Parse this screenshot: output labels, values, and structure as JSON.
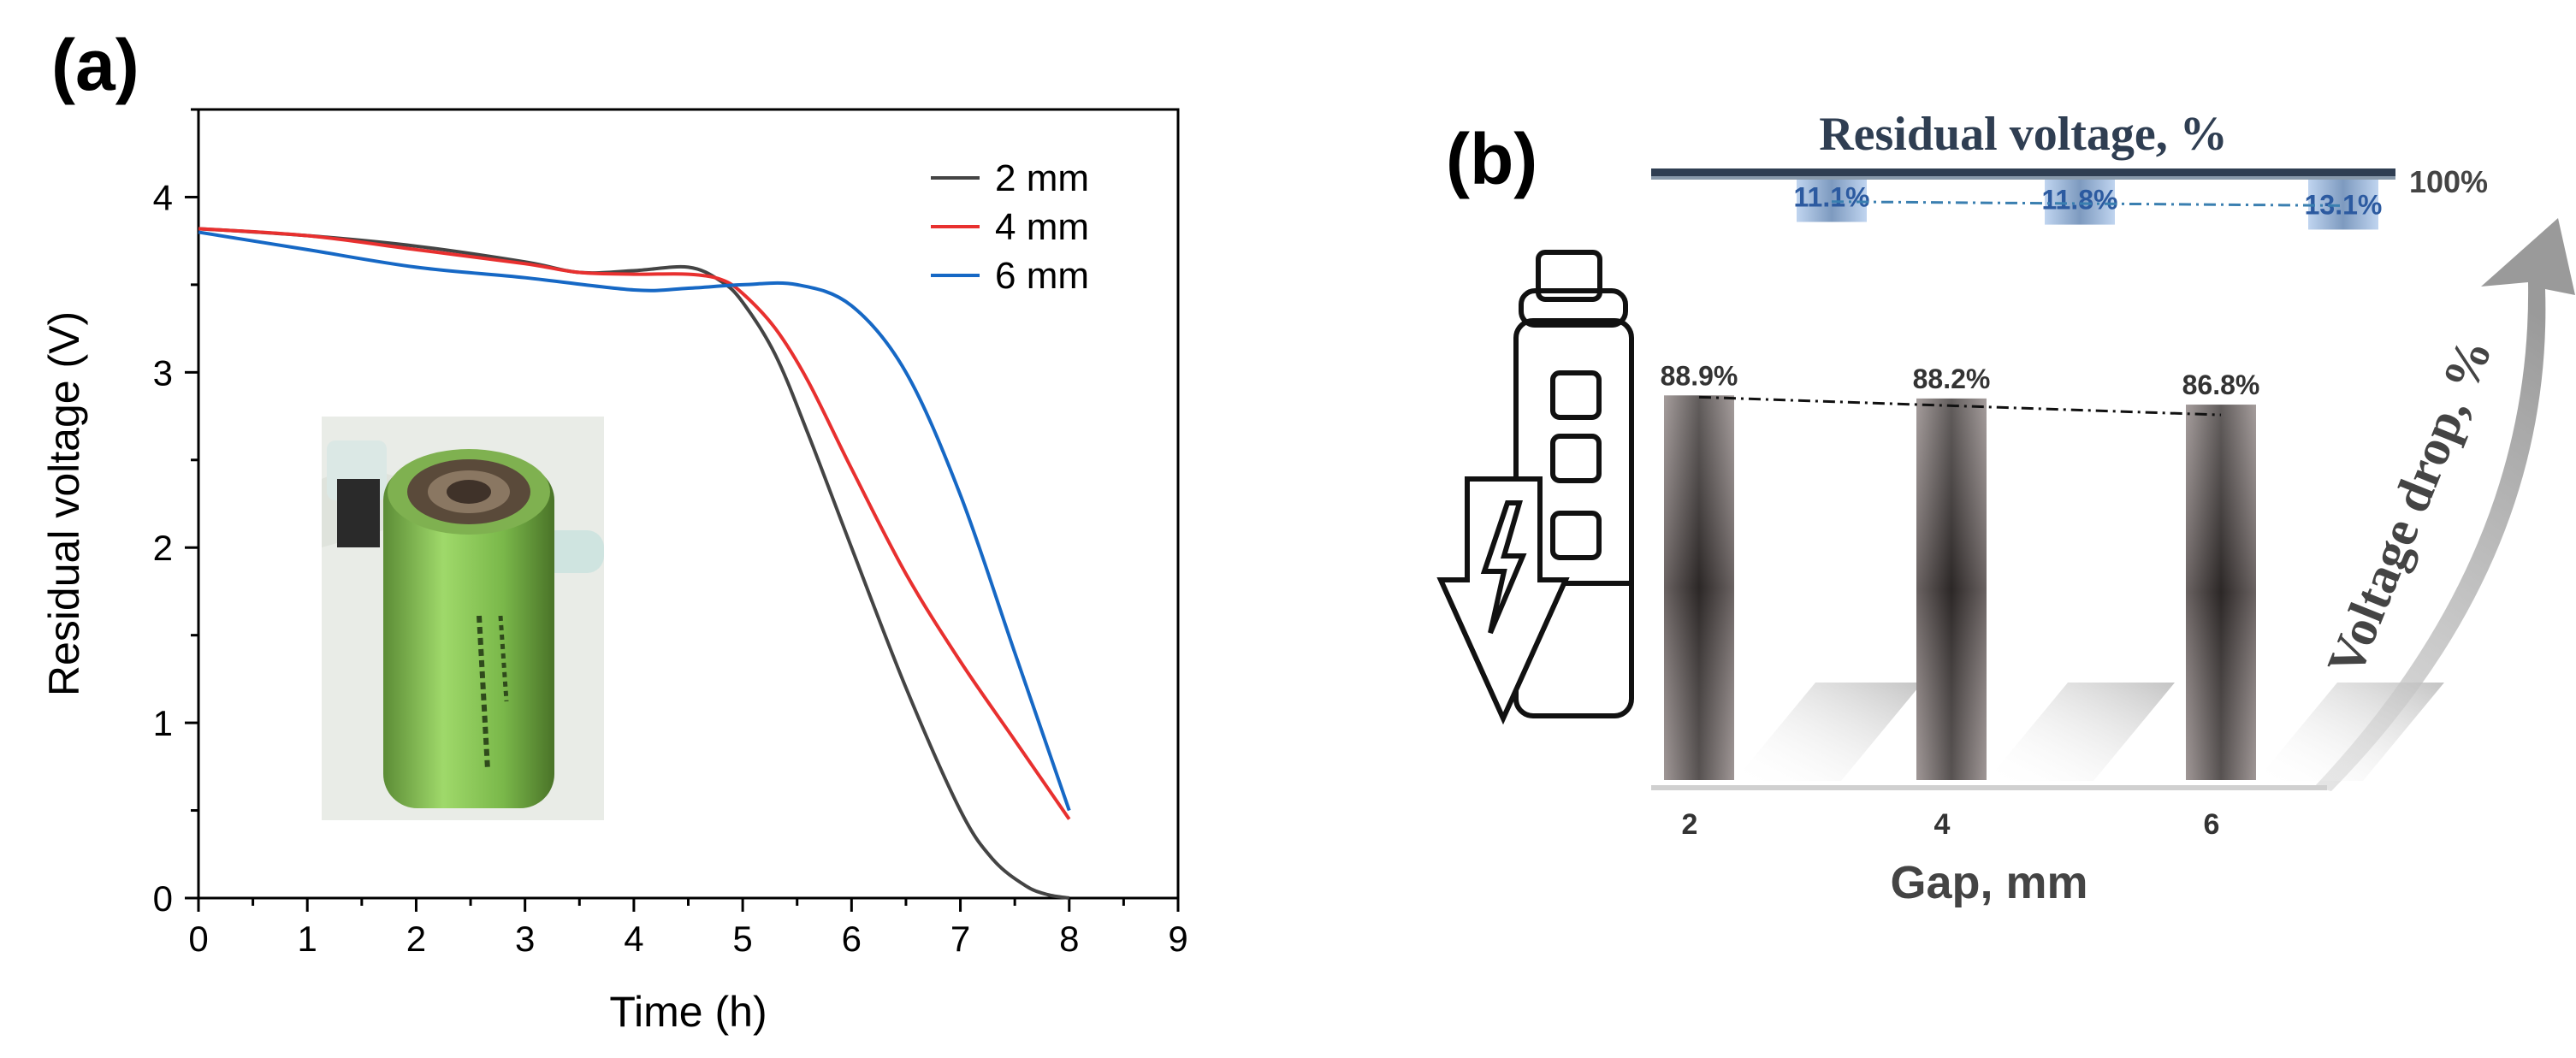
{
  "panels": {
    "a_label": "(a)",
    "b_label": "(b)"
  },
  "chart_data": [
    {
      "type": "line",
      "xlabel": "Time (h)",
      "ylabel": "Residual voltage (V)",
      "xlim": [
        0,
        9
      ],
      "ylim": [
        0,
        4.5
      ],
      "x_ticks": [
        0,
        1,
        2,
        3,
        4,
        5,
        6,
        7,
        8,
        9
      ],
      "y_ticks": [
        0,
        1,
        2,
        3,
        4
      ],
      "grid": false,
      "legend_position": "top-right",
      "series": [
        {
          "name": "2 mm",
          "color": "#444444",
          "x": [
            0,
            1,
            2,
            3,
            3.5,
            4,
            4.5,
            4.8,
            5,
            5.3,
            5.6,
            6,
            6.5,
            7,
            7.3,
            7.6,
            7.8,
            8
          ],
          "y": [
            3.82,
            3.78,
            3.72,
            3.63,
            3.57,
            3.58,
            3.6,
            3.52,
            3.4,
            3.1,
            2.65,
            2.0,
            1.2,
            0.5,
            0.22,
            0.07,
            0.02,
            0.0
          ]
        },
        {
          "name": "4 mm",
          "color": "#e8302f",
          "x": [
            0,
            1,
            2,
            3,
            3.5,
            4,
            4.5,
            4.8,
            5,
            5.3,
            5.6,
            6,
            6.5,
            7,
            7.5,
            8
          ],
          "y": [
            3.82,
            3.78,
            3.7,
            3.62,
            3.57,
            3.56,
            3.56,
            3.53,
            3.45,
            3.25,
            2.95,
            2.45,
            1.85,
            1.35,
            0.9,
            0.45
          ]
        },
        {
          "name": "6 mm",
          "color": "#1668c5",
          "x": [
            0,
            1,
            2,
            3,
            4,
            4.5,
            5,
            5.5,
            6,
            6.5,
            7,
            7.5,
            8
          ],
          "y": [
            3.8,
            3.7,
            3.6,
            3.54,
            3.47,
            3.48,
            3.5,
            3.5,
            3.38,
            3.0,
            2.3,
            1.4,
            0.5
          ]
        }
      ],
      "inset": "cylindrical green battery cell photo"
    },
    {
      "type": "bar",
      "title": "Residual voltage, %",
      "xlabel": "Gap, mm",
      "ylabel": "Voltage drop, %",
      "categories": [
        "2",
        "4",
        "6"
      ],
      "top_marker": "100%",
      "series": [
        {
          "name": "Residual voltage",
          "values": [
            88.9,
            88.2,
            86.8
          ],
          "labels": [
            "88.9%",
            "88.2%",
            "86.8%"
          ],
          "color": "#5a5250"
        },
        {
          "name": "Voltage drop",
          "values": [
            11.1,
            11.8,
            13.1
          ],
          "labels": [
            "11.1%",
            "11.8%",
            "13.1%"
          ],
          "color": "#9fbde3"
        }
      ]
    }
  ]
}
